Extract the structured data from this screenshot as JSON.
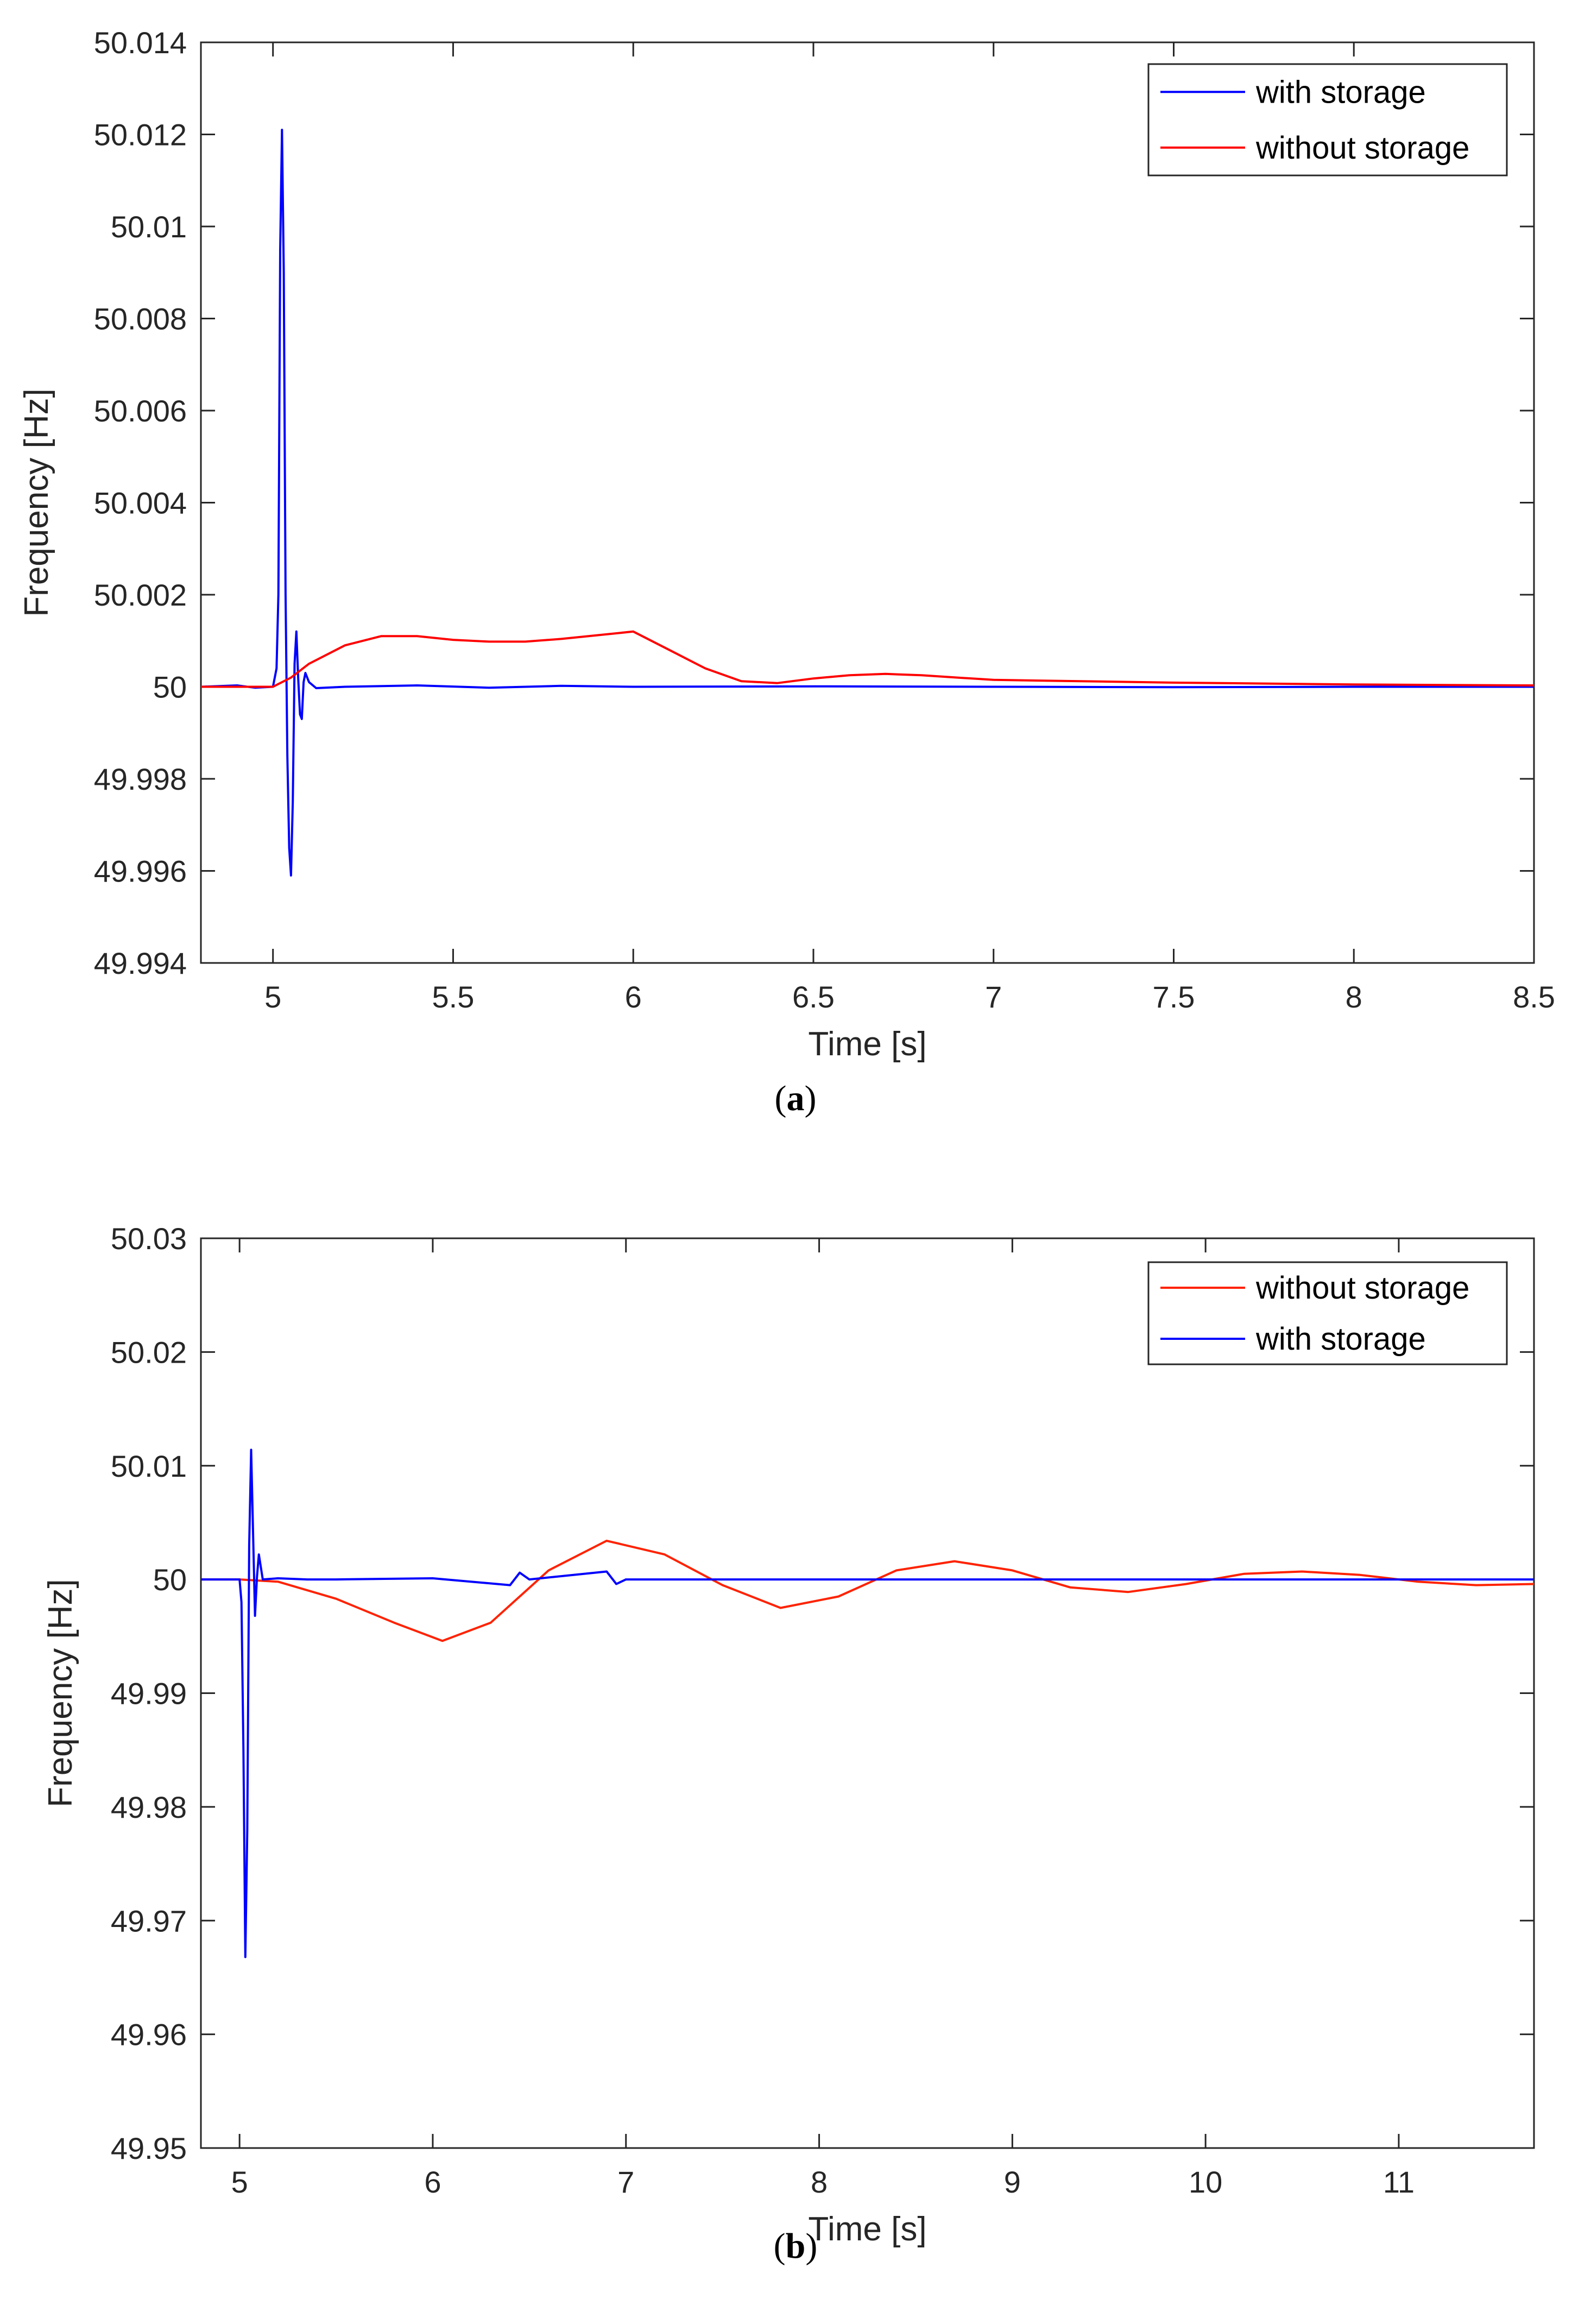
{
  "chart_data": [
    {
      "type": "line",
      "panel": "a",
      "caption_letter": "a",
      "xlabel": "Time [s]",
      "ylabel": "Frequency [Hz]",
      "xlim": [
        4.8,
        8.5
      ],
      "ylim": [
        49.994,
        50.014
      ],
      "xticks": [
        5,
        5.5,
        6,
        6.5,
        7,
        7.5,
        8,
        8.5
      ],
      "xtick_labels": [
        "5",
        "5.5",
        "6",
        "6.5",
        "7",
        "7.5",
        "8",
        "8.5"
      ],
      "yticks": [
        49.994,
        49.996,
        49.998,
        50,
        50.002,
        50.004,
        50.006,
        50.008,
        50.01,
        50.012,
        50.014
      ],
      "ytick_labels": [
        "49.994",
        "49.996",
        "49.998",
        "50",
        "50.002",
        "50.004",
        "50.006",
        "50.008",
        "50.01",
        "50.012",
        "50.014"
      ],
      "legend_position": "top-right",
      "legend": [
        "with storage",
        "without storage"
      ],
      "series": [
        {
          "name": "with storage",
          "color": "#0000ff",
          "points": [
            [
              4.8,
              50.0
            ],
            [
              4.9,
              50.00003
            ],
            [
              4.95,
              49.99998
            ],
            [
              5.0,
              50.0
            ],
            [
              5.01,
              50.0004
            ],
            [
              5.015,
              50.002
            ],
            [
              5.02,
              50.0095
            ],
            [
              5.025,
              50.0121
            ],
            [
              5.03,
              50.009
            ],
            [
              5.035,
              50.002
            ],
            [
              5.04,
              49.9985
            ],
            [
              5.045,
              49.9965
            ],
            [
              5.05,
              49.9959
            ],
            [
              5.055,
              49.9975
            ],
            [
              5.06,
              50.0005
            ],
            [
              5.065,
              50.0012
            ],
            [
              5.07,
              50.0002
            ],
            [
              5.075,
              49.9994
            ],
            [
              5.08,
              49.9993
            ],
            [
              5.085,
              50.0001
            ],
            [
              5.09,
              50.0003
            ],
            [
              5.1,
              50.0001
            ],
            [
              5.12,
              49.99997
            ],
            [
              5.2,
              50.0
            ],
            [
              5.4,
              50.00003
            ],
            [
              5.6,
              49.99998
            ],
            [
              5.8,
              50.00002
            ],
            [
              6.0,
              50.0
            ],
            [
              6.5,
              50.00001
            ],
            [
              7.0,
              50.0
            ],
            [
              7.5,
              49.99999
            ],
            [
              8.0,
              50.0
            ],
            [
              8.5,
              50.0
            ]
          ]
        },
        {
          "name": "without storage",
          "color": "#ff0000",
          "points": [
            [
              4.8,
              50.0
            ],
            [
              5.0,
              50.0
            ],
            [
              5.05,
              50.0002
            ],
            [
              5.1,
              50.0005
            ],
            [
              5.2,
              50.0009
            ],
            [
              5.3,
              50.0011
            ],
            [
              5.4,
              50.0011
            ],
            [
              5.5,
              50.00102
            ],
            [
              5.6,
              50.00098
            ],
            [
              5.7,
              50.00098
            ],
            [
              5.8,
              50.00104
            ],
            [
              5.9,
              50.00112
            ],
            [
              6.0,
              50.0012
            ],
            [
              6.1,
              50.0008
            ],
            [
              6.2,
              50.0004
            ],
            [
              6.3,
              50.00012
            ],
            [
              6.4,
              50.00008
            ],
            [
              6.5,
              50.00018
            ],
            [
              6.6,
              50.00025
            ],
            [
              6.7,
              50.00028
            ],
            [
              6.8,
              50.00025
            ],
            [
              6.9,
              50.0002
            ],
            [
              7.0,
              50.00015
            ],
            [
              7.5,
              50.00009
            ],
            [
              8.0,
              50.00005
            ],
            [
              8.5,
              50.00003
            ]
          ]
        }
      ]
    },
    {
      "type": "line",
      "panel": "b",
      "caption_letter": "b",
      "xlabel": "Time [s]",
      "ylabel": "Frequency [Hz]",
      "xlim": [
        4.8,
        11.7
      ],
      "ylim": [
        49.95,
        50.03
      ],
      "xticks": [
        5,
        6,
        7,
        8,
        9,
        10,
        11
      ],
      "xtick_labels": [
        "5",
        "6",
        "7",
        "8",
        "9",
        "10",
        "11"
      ],
      "yticks": [
        49.95,
        49.96,
        49.97,
        49.98,
        49.99,
        50,
        50.01,
        50.02,
        50.03
      ],
      "ytick_labels": [
        "49.95",
        "49.96",
        "49.97",
        "49.98",
        "49.99",
        "50",
        "50.01",
        "50.02",
        "50.03"
      ],
      "legend_position": "top-right",
      "legend": [
        "without storage",
        "with storage"
      ],
      "series": [
        {
          "name": "without storage",
          "color": "#ff2200",
          "points": [
            [
              4.8,
              50.0
            ],
            [
              5.0,
              50.0
            ],
            [
              5.2,
              49.9998
            ],
            [
              5.5,
              49.9983
            ],
            [
              5.8,
              49.9962
            ],
            [
              6.05,
              49.9946
            ],
            [
              6.3,
              49.9962
            ],
            [
              6.6,
              50.0008
            ],
            [
              6.9,
              50.0034
            ],
            [
              7.2,
              50.0022
            ],
            [
              7.5,
              49.9995
            ],
            [
              7.8,
              49.9975
            ],
            [
              8.1,
              49.9985
            ],
            [
              8.4,
              50.0008
            ],
            [
              8.7,
              50.0016
            ],
            [
              9.0,
              50.0008
            ],
            [
              9.3,
              49.9993
            ],
            [
              9.6,
              49.9989
            ],
            [
              9.9,
              49.9996
            ],
            [
              10.2,
              50.0005
            ],
            [
              10.5,
              50.0007
            ],
            [
              10.8,
              50.0004
            ],
            [
              11.1,
              49.9998
            ],
            [
              11.4,
              49.9995
            ],
            [
              11.7,
              49.9996
            ]
          ]
        },
        {
          "name": "with storage",
          "color": "#0000ff",
          "points": [
            [
              4.8,
              50.0
            ],
            [
              5.0,
              50.0
            ],
            [
              5.01,
              49.998
            ],
            [
              5.02,
              49.985
            ],
            [
              5.03,
              49.9668
            ],
            [
              5.04,
              49.978
            ],
            [
              5.05,
              50.003
            ],
            [
              5.06,
              50.0114
            ],
            [
              5.07,
              50.004
            ],
            [
              5.08,
              49.9968
            ],
            [
              5.09,
              50.0002
            ],
            [
              5.1,
              50.0022
            ],
            [
              5.12,
              50.0
            ],
            [
              5.2,
              50.0001
            ],
            [
              5.35,
              50.0
            ],
            [
              5.5,
              50.0
            ],
            [
              6.0,
              50.0001
            ],
            [
              6.4,
              49.9995
            ],
            [
              6.45,
              50.0006
            ],
            [
              6.5,
              50.0
            ],
            [
              6.9,
              50.0007
            ],
            [
              6.95,
              49.9996
            ],
            [
              7.0,
              50.0
            ],
            [
              8.0,
              50.0
            ],
            [
              9.0,
              50.0
            ],
            [
              10.0,
              50.0
            ],
            [
              11.0,
              50.0
            ],
            [
              11.7,
              50.0
            ]
          ]
        }
      ]
    }
  ]
}
